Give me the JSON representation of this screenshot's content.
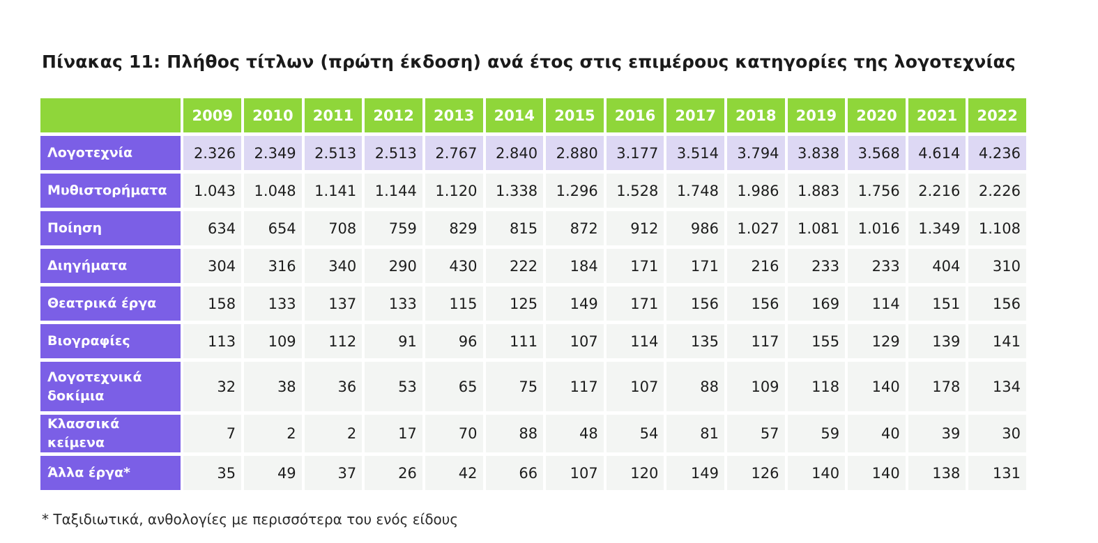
{
  "title": "Πίνακας 11:  Πλήθος τίτλων (πρώτη έκδοση) ανά έτος στις επιμέρους κατηγορίες της λογοτεχνίας",
  "footnote": "*  Ταξιδιωτικά, ανθολογίες με περισσότερα του ενός είδους",
  "colors": {
    "header_green": "#8fd63a",
    "row_header_purple": "#7b5fe6",
    "total_row_lavender": "#ddd8f4",
    "cell_grey": "#f3f5f3"
  },
  "chart_data": {
    "type": "table",
    "columns": [
      "2009",
      "2010",
      "2011",
      "2012",
      "2013",
      "2014",
      "2015",
      "2016",
      "2017",
      "2018",
      "2019",
      "2020",
      "2021",
      "2022"
    ],
    "rows": [
      {
        "label": "Λογοτεχνία",
        "values": [
          "2.326",
          "2.349",
          "2.513",
          "2.513",
          "2.767",
          "2.840",
          "2.880",
          "3.177",
          "3.514",
          "3.794",
          "3.838",
          "3.568",
          "4.614",
          "4.236"
        ]
      },
      {
        "label": "Μυθιστορήματα",
        "values": [
          "1.043",
          "1.048",
          "1.141",
          "1.144",
          "1.120",
          "1.338",
          "1.296",
          "1.528",
          "1.748",
          "1.986",
          "1.883",
          "1.756",
          "2.216",
          "2.226"
        ]
      },
      {
        "label": "Ποίηση",
        "values": [
          "634",
          "654",
          "708",
          "759",
          "829",
          "815",
          "872",
          "912",
          "986",
          "1.027",
          "1.081",
          "1.016",
          "1.349",
          "1.108"
        ]
      },
      {
        "label": "Διηγήματα",
        "values": [
          "304",
          "316",
          "340",
          "290",
          "430",
          "222",
          "184",
          "171",
          "171",
          "216",
          "233",
          "233",
          "404",
          "310"
        ]
      },
      {
        "label": "Θεατρικά έργα",
        "values": [
          "158",
          "133",
          "137",
          "133",
          "115",
          "125",
          "149",
          "171",
          "156",
          "156",
          "169",
          "114",
          "151",
          "156"
        ]
      },
      {
        "label": "Βιογραφίες",
        "values": [
          "113",
          "109",
          "112",
          "91",
          "96",
          "111",
          "107",
          "114",
          "135",
          "117",
          "155",
          "129",
          "139",
          "141"
        ]
      },
      {
        "label": "Λογοτεχνικά δοκίμια",
        "values": [
          "32",
          "38",
          "36",
          "53",
          "65",
          "75",
          "117",
          "107",
          "88",
          "109",
          "118",
          "140",
          "178",
          "134"
        ]
      },
      {
        "label": "Κλασσικά κείμενα",
        "values": [
          "7",
          "2",
          "2",
          "17",
          "70",
          "88",
          "48",
          "54",
          "81",
          "57",
          "59",
          "40",
          "39",
          "30"
        ]
      },
      {
        "label": "Άλλα έργα*",
        "values": [
          "35",
          "49",
          "37",
          "26",
          "42",
          "66",
          "107",
          "120",
          "149",
          "126",
          "140",
          "140",
          "138",
          "131"
        ]
      }
    ]
  }
}
